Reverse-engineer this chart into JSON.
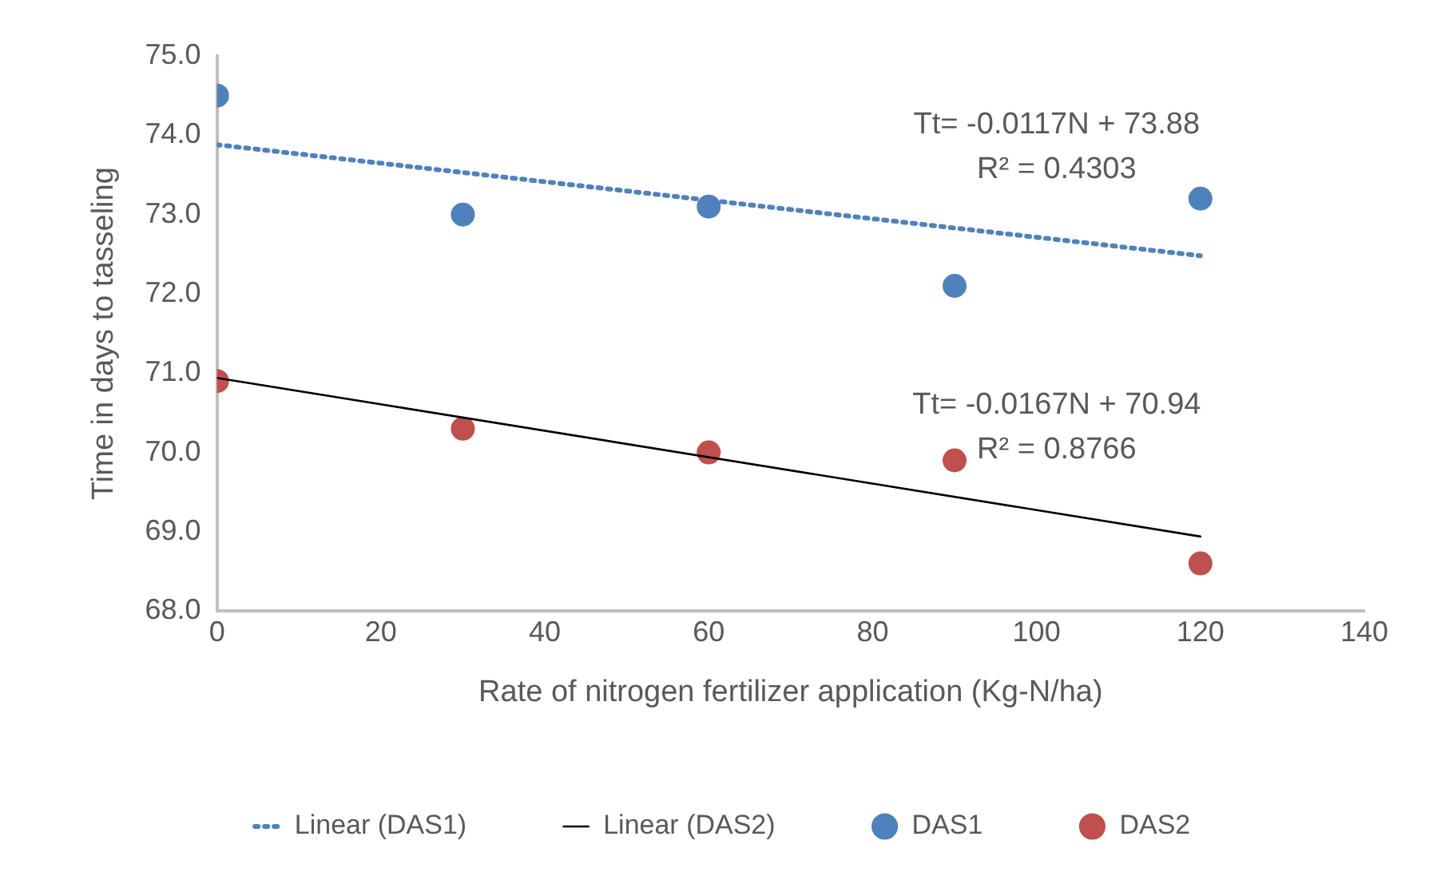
{
  "chart_data": {
    "type": "scatter",
    "xlabel": "Rate of nitrogen fertilizer application (Kg-N/ha)",
    "ylabel": "Time in days to tasseling",
    "xlim": [
      0,
      140
    ],
    "xticks": [
      0,
      20,
      40,
      60,
      80,
      100,
      120,
      140
    ],
    "ylim": [
      68,
      75
    ],
    "yticks": [
      {
        "value": 68,
        "label": "68.0"
      },
      {
        "value": 69,
        "label": "69.0"
      },
      {
        "value": 70,
        "label": "70.0"
      },
      {
        "value": 71,
        "label": "71.0"
      },
      {
        "value": 72,
        "label": "72.0"
      },
      {
        "value": 73,
        "label": "73.0"
      },
      {
        "value": 74,
        "label": "74.0"
      },
      {
        "value": 75,
        "label": "75.0"
      }
    ],
    "legend": "bottom",
    "series": [
      {
        "name": "DAS1",
        "type": "scatter",
        "color": "#4f81bd",
        "marker": "circle",
        "x": [
          0,
          30,
          60,
          90,
          120
        ],
        "values": [
          74.5,
          73.0,
          73.1,
          72.1,
          73.2
        ]
      },
      {
        "name": "DAS2",
        "type": "scatter",
        "color": "#c0504d",
        "marker": "circle",
        "x": [
          0,
          30,
          60,
          90,
          120
        ],
        "values": [
          70.9,
          70.3,
          70.0,
          69.9,
          68.6
        ]
      },
      {
        "name": "Linear (DAS1)",
        "type": "line",
        "color": "#4f81bd",
        "line_style": "dotted",
        "marker": "none",
        "x": [
          0,
          120
        ],
        "values": [
          73.88,
          72.48
        ]
      },
      {
        "name": "Linear (DAS2)",
        "type": "line",
        "color": "#000000",
        "line_style": "solid",
        "marker": "none",
        "x": [
          0,
          120
        ],
        "values": [
          70.94,
          68.94
        ]
      }
    ],
    "annotations": [
      "Tt= -0.0117N + 73.88",
      "R² = 0.4303",
      "Tt= -0.0167N + 70.94",
      "R² = 0.8766"
    ]
  }
}
